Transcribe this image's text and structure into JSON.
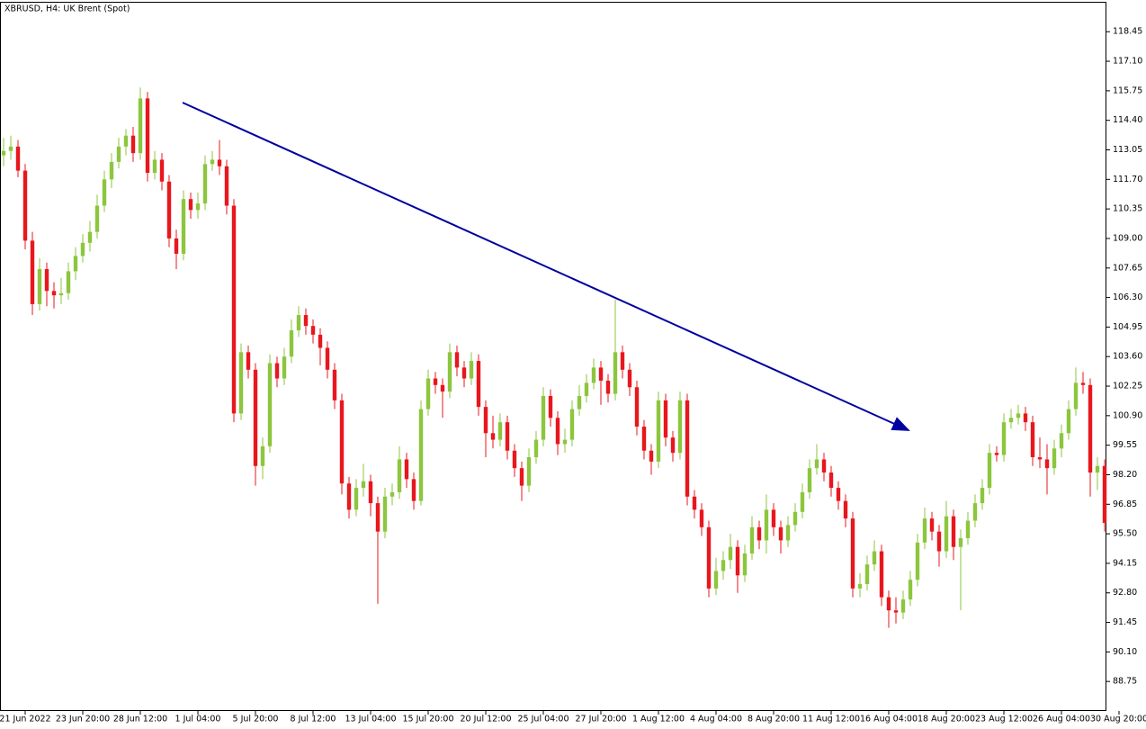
{
  "chart_data": {
    "type": "candlestick",
    "title": "XBRUSD, H4:  UK Brent (Spot)",
    "up_color": "#8cc63e",
    "down_color": "#e8171d",
    "xlim": [
      -0.5,
      153.25
    ],
    "ylim": [
      87.4,
      119.9
    ],
    "yticks": [
      118.45,
      {
        "value": 117.1,
        "label": "117.10"
      },
      115.75,
      {
        "value": 114.4,
        "label": "114.40"
      },
      113.05,
      {
        "value": 111.7,
        "label": "111.70"
      },
      110.35,
      {
        "value": 109,
        "label": "109.00"
      },
      107.65,
      {
        "value": 106.3,
        "label": "106.30"
      },
      104.95,
      {
        "value": 103.6,
        "label": "103.60"
      },
      102.25,
      {
        "value": 100.9,
        "label": "100.90"
      },
      99.55,
      {
        "value": 98.2,
        "label": "98.20"
      },
      96.85,
      {
        "value": 95.5,
        "label": "95.50"
      },
      94.15,
      {
        "value": 92.8,
        "label": "92.80"
      },
      91.45,
      {
        "value": 90.1,
        "label": "90.10"
      },
      88.75
    ],
    "xticks": [
      {
        "value": 3,
        "label": "21 Jun 2022"
      },
      {
        "value": 11,
        "label": "23 Jun 20:00"
      },
      {
        "value": 19,
        "label": "28 Jun 12:00"
      },
      {
        "value": 27,
        "label": "1 Jul 04:00"
      },
      {
        "value": 35,
        "label": "5 Jul 20:00"
      },
      {
        "value": 43,
        "label": "8 Jul 12:00"
      },
      {
        "value": 51,
        "label": "13 Jul 04:00"
      },
      {
        "value": 59,
        "label": "15 Jul 20:00"
      },
      {
        "value": 67,
        "label": "20 Jul 12:00"
      },
      {
        "value": 75,
        "label": "25 Jul 04:00"
      },
      {
        "value": 83,
        "label": "27 Jul 20:00"
      },
      {
        "value": 91,
        "label": "1 Aug 12:00"
      },
      {
        "value": 99,
        "label": "4 Aug 04:00"
      },
      {
        "value": 107,
        "label": "8 Aug 20:00"
      },
      {
        "value": 115,
        "label": "11 Aug 12:00"
      },
      {
        "value": 123,
        "label": "16 Aug 04:00"
      },
      {
        "value": 131,
        "label": "18 Aug 20:00"
      },
      {
        "value": 139,
        "label": "23 Aug 12:00"
      },
      {
        "value": 147,
        "label": "26 Aug 04:00"
      },
      {
        "value": 155,
        "label": "30 Aug 20:00"
      }
    ],
    "open": [
      112.8,
      113.0,
      113.2,
      112.1,
      108.9,
      106.0,
      107.6,
      106.6,
      106.4,
      106.5,
      107.5,
      108.2,
      108.8,
      109.3,
      110.5,
      111.7,
      112.5,
      113.2,
      113.7,
      112.9,
      115.4,
      112.0,
      112.6,
      111.6,
      109.0,
      108.3,
      110.8,
      110.3,
      110.6,
      112.4,
      112.6,
      112.3,
      110.5,
      101.0,
      103.8,
      103.0,
      98.6,
      99.5,
      103.3,
      102.6,
      103.6,
      104.8,
      105.5,
      105.0,
      104.6,
      104.0,
      103.0,
      101.6,
      97.8,
      96.6,
      97.6,
      97.9,
      96.9,
      95.6,
      97.2,
      97.4,
      98.9,
      98.0,
      97.0,
      101.2,
      102.6,
      102.3,
      102.0,
      103.8,
      103.1,
      102.6,
      103.4,
      101.3,
      100.1,
      99.8,
      100.6,
      99.3,
      98.5,
      97.7,
      99.0,
      99.8,
      101.8,
      100.8,
      99.6,
      99.8,
      101.2,
      101.8,
      102.4,
      103.1,
      102.5,
      101.9,
      103.8,
      103.0,
      102.2,
      100.4,
      99.3,
      98.8,
      101.6,
      99.9,
      99.2,
      101.6,
      97.2,
      96.6,
      95.8,
      93.0,
      93.8,
      94.3,
      94.9,
      93.6,
      94.6,
      95.8,
      95.2,
      96.6,
      95.8,
      95.2,
      95.9,
      96.5,
      97.4,
      98.5,
      98.9,
      98.3,
      97.6,
      97.0,
      96.2,
      93.0,
      93.2,
      94.1,
      94.7,
      92.6,
      92.0,
      91.9,
      92.5,
      93.4,
      95.1,
      96.2,
      95.6,
      94.7,
      96.3,
      94.9,
      95.3,
      96.1,
      96.9,
      97.6,
      99.2,
      99.1,
      100.6,
      100.8,
      101.0,
      100.6,
      99.0,
      98.9,
      98.5,
      99.4,
      100.1,
      101.2,
      102.4,
      102.3,
      98.3,
      98.6
    ],
    "high": [
      113.6,
      113.7,
      113.5,
      112.4,
      109.3,
      108.1,
      107.9,
      107.0,
      107.2,
      107.9,
      108.6,
      109.2,
      109.8,
      111.0,
      112.1,
      112.9,
      113.6,
      114.0,
      114.1,
      115.9,
      115.7,
      113.0,
      112.9,
      111.9,
      109.4,
      111.2,
      111.1,
      111.1,
      112.8,
      113.0,
      113.5,
      112.6,
      110.8,
      104.2,
      104.1,
      103.3,
      99.9,
      103.7,
      103.6,
      104.0,
      105.3,
      105.9,
      105.8,
      105.3,
      104.9,
      104.3,
      103.3,
      101.9,
      98.1,
      98.0,
      98.7,
      98.2,
      97.2,
      97.6,
      97.8,
      99.5,
      99.2,
      98.3,
      101.6,
      103.0,
      102.9,
      102.6,
      104.2,
      104.1,
      103.4,
      103.8,
      103.7,
      101.6,
      100.9,
      101.0,
      100.9,
      99.6,
      98.8,
      99.4,
      100.2,
      102.2,
      102.1,
      101.1,
      100.3,
      101.6,
      102.3,
      102.8,
      103.5,
      103.4,
      102.8,
      106.2,
      104.1,
      103.3,
      102.5,
      100.7,
      99.6,
      102.0,
      101.9,
      100.2,
      102.0,
      101.9,
      97.5,
      96.9,
      96.1,
      94.4,
      94.7,
      95.5,
      95.2,
      95.0,
      96.3,
      96.1,
      97.3,
      96.9,
      96.1,
      96.3,
      96.9,
      97.8,
      98.9,
      99.6,
      99.2,
      98.6,
      97.9,
      97.3,
      96.5,
      93.7,
      94.5,
      95.2,
      95.0,
      92.9,
      92.6,
      92.9,
      93.8,
      95.5,
      96.7,
      96.5,
      95.9,
      97.0,
      96.6,
      95.7,
      96.5,
      97.3,
      98.0,
      99.6,
      99.5,
      101.0,
      101.2,
      101.4,
      101.3,
      100.9,
      99.9,
      99.6,
      99.8,
      100.5,
      101.6,
      103.1,
      102.9,
      102.6,
      99.0,
      98.9
    ],
    "low": [
      112.3,
      112.6,
      111.8,
      108.5,
      105.5,
      105.7,
      105.9,
      105.8,
      106.0,
      106.2,
      107.1,
      107.9,
      108.4,
      109.0,
      110.2,
      111.3,
      112.2,
      112.8,
      112.5,
      112.6,
      111.6,
      111.7,
      111.2,
      108.6,
      107.6,
      108.0,
      109.9,
      109.9,
      110.3,
      112.1,
      111.9,
      110.1,
      100.6,
      100.7,
      102.6,
      97.7,
      98.0,
      99.2,
      102.2,
      102.3,
      103.3,
      104.5,
      104.6,
      104.2,
      103.2,
      102.6,
      101.2,
      97.3,
      96.2,
      96.3,
      97.2,
      96.3,
      92.3,
      95.3,
      96.8,
      97.1,
      97.6,
      96.6,
      96.8,
      100.9,
      101.9,
      100.8,
      101.7,
      102.7,
      102.2,
      102.3,
      100.9,
      99.0,
      99.4,
      99.5,
      98.9,
      98.1,
      97.0,
      97.4,
      98.7,
      99.5,
      100.4,
      99.1,
      99.2,
      99.5,
      100.9,
      101.5,
      102.1,
      101.4,
      101.5,
      101.6,
      102.6,
      101.8,
      100.0,
      98.9,
      98.2,
      98.5,
      99.5,
      98.8,
      98.9,
      96.8,
      96.2,
      95.4,
      92.6,
      92.7,
      93.4,
      93.9,
      92.8,
      93.3,
      94.3,
      94.8,
      94.6,
      95.4,
      94.6,
      94.9,
      95.6,
      96.2,
      97.1,
      98.2,
      97.9,
      97.2,
      96.6,
      95.8,
      92.6,
      92.6,
      92.9,
      93.8,
      92.2,
      91.2,
      91.4,
      91.6,
      92.2,
      93.1,
      94.8,
      95.2,
      94.0,
      94.4,
      94.3,
      92.0,
      95.0,
      95.8,
      96.6,
      97.3,
      98.8,
      98.8,
      100.3,
      100.5,
      100.2,
      98.6,
      98.5,
      97.3,
      98.2,
      99.0,
      99.8,
      100.9,
      101.9,
      97.2,
      97.5,
      95.6
    ],
    "close": [
      113.0,
      113.2,
      112.1,
      108.9,
      106.0,
      107.6,
      106.6,
      106.4,
      106.5,
      107.5,
      108.2,
      108.8,
      109.3,
      110.5,
      111.7,
      112.5,
      113.2,
      113.7,
      112.9,
      115.4,
      112.0,
      112.6,
      111.6,
      109.0,
      108.3,
      110.8,
      110.3,
      110.6,
      112.4,
      112.6,
      112.3,
      110.5,
      101.0,
      103.8,
      103.0,
      98.6,
      99.5,
      103.3,
      102.6,
      103.6,
      104.8,
      105.5,
      105.0,
      104.6,
      104.0,
      103.0,
      101.6,
      97.8,
      96.6,
      97.6,
      97.9,
      96.9,
      95.6,
      97.2,
      97.4,
      98.9,
      98.0,
      97.0,
      101.2,
      102.6,
      102.3,
      102.0,
      103.8,
      103.1,
      102.6,
      103.4,
      101.3,
      100.1,
      99.8,
      100.6,
      99.3,
      98.5,
      97.7,
      99.0,
      99.8,
      101.8,
      100.8,
      99.6,
      99.8,
      101.2,
      101.8,
      102.4,
      103.1,
      102.5,
      101.9,
      103.8,
      103.0,
      102.2,
      100.4,
      99.3,
      98.8,
      101.6,
      99.9,
      99.2,
      101.6,
      97.2,
      96.6,
      95.8,
      93.0,
      93.8,
      94.3,
      94.9,
      93.6,
      94.6,
      95.8,
      95.2,
      96.6,
      95.8,
      95.2,
      95.9,
      96.5,
      97.4,
      98.5,
      98.9,
      98.3,
      97.6,
      97.0,
      96.2,
      93.0,
      93.2,
      94.1,
      94.7,
      92.6,
      92.0,
      91.9,
      92.5,
      93.4,
      95.1,
      96.2,
      95.6,
      94.7,
      96.3,
      94.9,
      95.3,
      96.1,
      96.9,
      97.6,
      99.2,
      99.1,
      100.6,
      100.8,
      101.0,
      100.6,
      99.0,
      98.9,
      98.5,
      99.4,
      100.1,
      101.2,
      102.4,
      102.3,
      98.3,
      98.6,
      96.0
    ]
  }
}
